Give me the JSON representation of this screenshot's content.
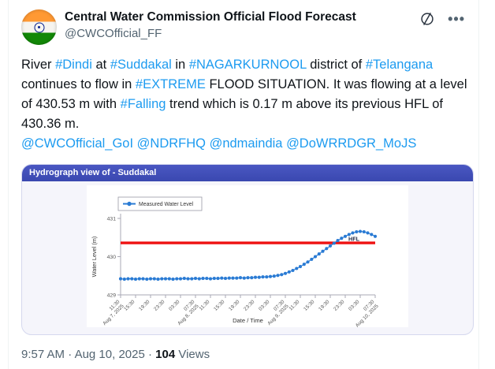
{
  "header": {
    "name": "Central Water Commission Official Flood Forecast",
    "handle": "@CWCOfficial_FF",
    "icons": [
      "grok-icon",
      "more-icon"
    ]
  },
  "tweet": {
    "segments": [
      {
        "text": "River ",
        "type": "text"
      },
      {
        "text": "#Dindi",
        "type": "link"
      },
      {
        "text": " at ",
        "type": "text"
      },
      {
        "text": "#Suddakal",
        "type": "link"
      },
      {
        "text": " in ",
        "type": "text"
      },
      {
        "text": "#NAGARKURNOOL",
        "type": "link"
      },
      {
        "text": " district of ",
        "type": "text"
      },
      {
        "text": "#Telangana",
        "type": "link"
      },
      {
        "text": " continues to flow in ",
        "type": "text"
      },
      {
        "text": "#EXTREME",
        "type": "link"
      },
      {
        "text": " FLOOD SITUATION. It was flowing at a level of 430.53 m with ",
        "type": "text"
      },
      {
        "text": "#Falling",
        "type": "link"
      },
      {
        "text": " trend which is 0.17 m above its previous HFL of 430.36 m.",
        "type": "text"
      }
    ],
    "mentions": [
      "@CWCOfficial_GoI",
      "@NDRFHQ",
      "@ndmaindia",
      "@DoWRRDGR_MoJS"
    ]
  },
  "chart_card": {
    "title": "Hydrograph view of - Suddakal"
  },
  "chart_data": {
    "type": "line",
    "title": "Hydrograph view of - Suddakal",
    "xlabel": "Date / Time",
    "ylabel": "Water Level (m)",
    "ylim": [
      429,
      431
    ],
    "yticks": [
      429,
      430,
      431
    ],
    "grid": false,
    "legend": [
      "Measured Water Level"
    ],
    "legend_position": "top-left",
    "series_color": "#2a7bd4",
    "hfl_line": {
      "value": 430.36,
      "label": "HFL",
      "color": "#ee1111"
    },
    "x_start": "Aug 7, 2025 11:30",
    "x_end": "Aug 10, 2025 07:30",
    "x_interval_hours": 1,
    "x_ticks": [
      {
        "index": 0,
        "lines": [
          "11:30",
          "Aug 7, 2025"
        ]
      },
      {
        "index": 4,
        "lines": [
          "15:30"
        ]
      },
      {
        "index": 8,
        "lines": [
          "19:30"
        ]
      },
      {
        "index": 12,
        "lines": [
          "23:30"
        ]
      },
      {
        "index": 16,
        "lines": [
          "03:30"
        ]
      },
      {
        "index": 20,
        "lines": [
          "07:30",
          "Aug 8, 2025"
        ]
      },
      {
        "index": 24,
        "lines": [
          "11:30"
        ]
      },
      {
        "index": 28,
        "lines": [
          "15:30"
        ]
      },
      {
        "index": 32,
        "lines": [
          "19:30"
        ]
      },
      {
        "index": 36,
        "lines": [
          "23:30"
        ]
      },
      {
        "index": 40,
        "lines": [
          "03:30"
        ]
      },
      {
        "index": 44,
        "lines": [
          "07:30",
          "Aug 9, 2025"
        ]
      },
      {
        "index": 48,
        "lines": [
          "11:30"
        ]
      },
      {
        "index": 52,
        "lines": [
          "15:30"
        ]
      },
      {
        "index": 56,
        "lines": [
          "19:30"
        ]
      },
      {
        "index": 60,
        "lines": [
          "23:30"
        ]
      },
      {
        "index": 64,
        "lines": [
          "03:30"
        ]
      },
      {
        "index": 68,
        "lines": [
          "07:30",
          "Aug 10, 2025"
        ]
      }
    ],
    "values": [
      429.42,
      429.41,
      429.42,
      429.42,
      429.41,
      429.42,
      429.42,
      429.41,
      429.42,
      429.42,
      429.41,
      429.42,
      429.42,
      429.42,
      429.41,
      429.42,
      429.42,
      429.43,
      429.42,
      429.42,
      429.43,
      429.42,
      429.43,
      429.43,
      429.42,
      429.43,
      429.43,
      429.44,
      429.43,
      429.44,
      429.44,
      429.44,
      429.45,
      429.44,
      429.45,
      429.45,
      429.46,
      429.46,
      429.47,
      429.47,
      429.48,
      429.49,
      429.51,
      429.53,
      429.56,
      429.6,
      429.64,
      429.69,
      429.74,
      429.8,
      429.86,
      429.93,
      430.0,
      430.07,
      430.14,
      430.21,
      430.28,
      430.35,
      430.42,
      430.48,
      430.53,
      430.58,
      430.62,
      430.65,
      430.66,
      430.65,
      430.62,
      430.58,
      430.53
    ]
  },
  "meta": {
    "time": "9:57 AM",
    "date": "Aug 10, 2025",
    "separator": "·",
    "views_count": "104",
    "views_label": "Views"
  },
  "colors": {
    "link": "#1d9bf0",
    "chart_title_bar": "#3e4cb8",
    "hfl_red": "#ee1111",
    "series_blue": "#2a7bd4",
    "text_primary": "#0f1419",
    "text_secondary": "#536471"
  }
}
